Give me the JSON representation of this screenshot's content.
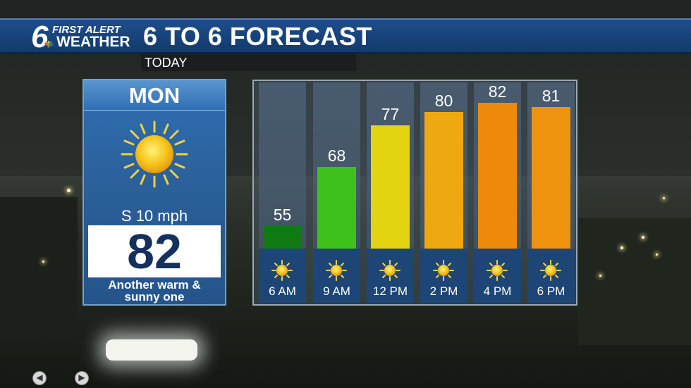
{
  "header": {
    "logo_number": "6",
    "logo_line1": "FIRST ALERT",
    "logo_line2": "WEATHER",
    "title": "6 TO 6 FORECAST"
  },
  "subbar": {
    "label": "TODAY"
  },
  "day": {
    "name": "MON",
    "icon": "sun-icon",
    "wind": "S 10 mph",
    "high": "82",
    "description_line1": "Another warm &",
    "description_line2": "sunny one"
  },
  "chart_data": {
    "type": "bar",
    "categories": [
      "6 AM",
      "9 AM",
      "12 PM",
      "2 PM",
      "4 PM",
      "6 PM"
    ],
    "values": [
      55,
      68,
      77,
      80,
      82,
      81
    ],
    "labels": [
      "55",
      "68",
      "77",
      "80",
      "82",
      "81"
    ],
    "colors": [
      "#0f7a12",
      "#3ec11a",
      "#e4d311",
      "#eea812",
      "#ee8a0b",
      "#ef930e"
    ],
    "icons": [
      "sun-icon",
      "sun-icon",
      "sun-icon",
      "sun-icon",
      "sun-icon",
      "sun-icon"
    ],
    "title": "",
    "xlabel": "",
    "ylabel": "",
    "ylim": [
      50,
      84
    ]
  },
  "nav": {
    "prev": "◀",
    "next": "▶"
  }
}
